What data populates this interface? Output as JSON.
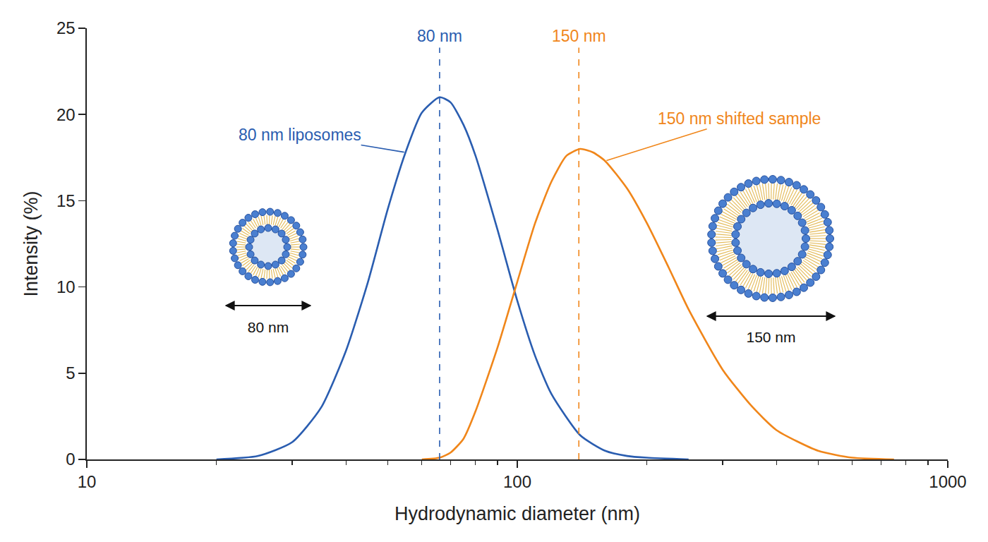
{
  "chart_data": {
    "type": "line",
    "x_label": "Hydrodynamic diameter (nm)",
    "y_label": "Intensity (%)",
    "log": "x",
    "grid": false,
    "xlim": [
      10,
      1000
    ],
    "xticks": [
      10,
      100,
      1000
    ],
    "ylim": [
      0,
      25
    ],
    "yticks": [
      0,
      5,
      10,
      15,
      20,
      25
    ],
    "series": [
      {
        "name": "80 nm liposomes",
        "color": "#2a5db0",
        "x": [
          20,
          25,
          30,
          35,
          40,
          45,
          50,
          55,
          60,
          66,
          70,
          75,
          80,
          90,
          100,
          110,
          120,
          140,
          160,
          180,
          200,
          250
        ],
        "values": [
          0,
          0.2,
          1.0,
          3.0,
          6.3,
          10.3,
          14.5,
          17.8,
          20.1,
          21.0,
          20.7,
          19.4,
          17.6,
          13.3,
          9.2,
          6.0,
          3.8,
          1.4,
          0.5,
          0.2,
          0.1,
          0
        ]
      },
      {
        "name": "150 nm shifted sample",
        "color": "#f0861a",
        "x": [
          60,
          66,
          70,
          75,
          80,
          90,
          100,
          110,
          120,
          130,
          140,
          150,
          160,
          180,
          200,
          225,
          250,
          300,
          350,
          400,
          500,
          600,
          750
        ],
        "values": [
          0,
          0.1,
          0.4,
          1.2,
          2.8,
          6.5,
          10.3,
          13.7,
          16.1,
          17.6,
          18.0,
          17.8,
          17.3,
          15.7,
          13.7,
          11.1,
          8.7,
          5.2,
          3.1,
          1.7,
          0.5,
          0.1,
          0
        ]
      }
    ],
    "reference_lines": [
      {
        "x": 66,
        "label": "80 nm",
        "color": "#2a5db0",
        "line_style": "dashed"
      },
      {
        "x": 139,
        "label": "150 nm",
        "color": "#f0861a",
        "line_style": "dashed"
      }
    ],
    "icons": [
      {
        "label": "80 nm"
      },
      {
        "label": "150 nm"
      }
    ]
  }
}
